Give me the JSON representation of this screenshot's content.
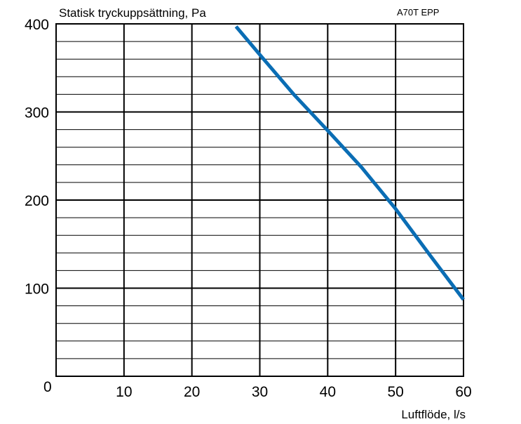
{
  "chart_data": {
    "type": "line",
    "title": "Statisk tryckuppsättning, Pa",
    "model": "A70T EPP",
    "xlabel": "Luftflöde, l/s",
    "ylabel": "",
    "origin_label": "0",
    "xlim": [
      0,
      60
    ],
    "ylim": [
      0,
      400
    ],
    "xticks": [
      10,
      20,
      30,
      40,
      50,
      60
    ],
    "yticks": [
      100,
      200,
      300,
      400
    ],
    "grid": true,
    "series": [
      {
        "color": "#0a6db4",
        "x": [
          26.5,
          30,
          35,
          40,
          45,
          50,
          55,
          60
        ],
        "y": [
          397,
          365,
          320,
          279,
          237,
          190,
          138,
          87
        ]
      }
    ]
  }
}
